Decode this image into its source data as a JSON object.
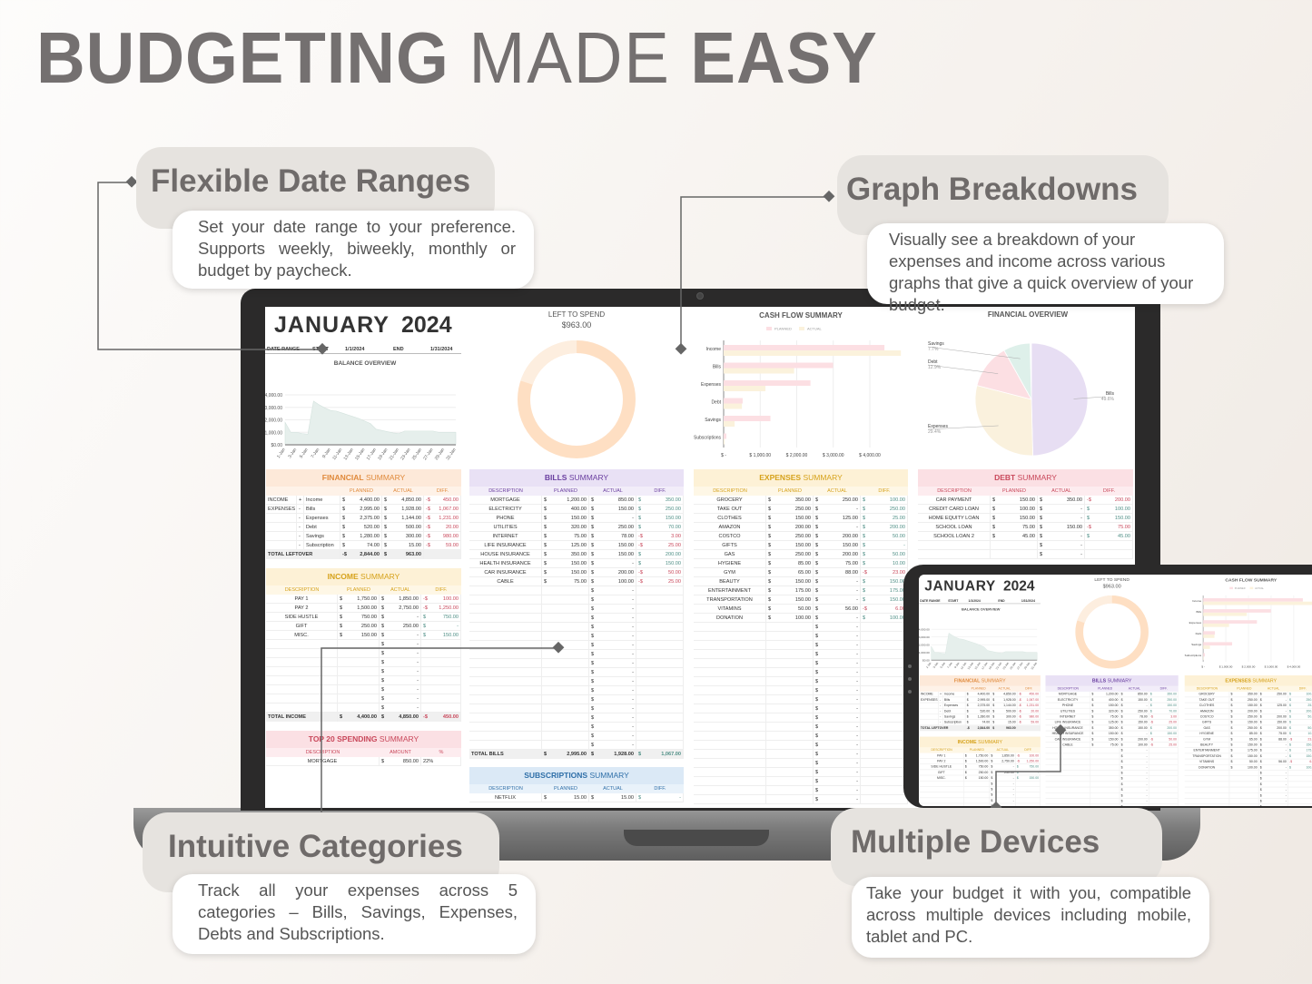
{
  "headline": {
    "bold1": "BUDGETING",
    "light": "MADE",
    "bold2": "EASY"
  },
  "callouts": [
    {
      "title": "Flexible Date Ranges",
      "text": "Set your date range to your preference. Supports weekly, biweekly, monthly or budget by paycheck."
    },
    {
      "title": "Graph Breakdowns",
      "text": "Visually see a breakdown of your expenses and income across various graphs that give a quick overview of your budget."
    },
    {
      "title": "Intuitive Categories",
      "text": "Track all your expenses across 5 categories – Bills, Savings, Expenses, Debts and Subscriptions."
    },
    {
      "title": "Multiple Devices",
      "text": "Take your budget it with you, compatible across multiple devices including mobile, tablet and PC."
    }
  ],
  "dashboard": {
    "month": "JANUARY",
    "year": "2024",
    "date_range": {
      "label": "DATE RANGE",
      "start_label": "START",
      "start": "1/1/2024",
      "end_label": "END",
      "end": "1/31/2024"
    },
    "left_to_spend": {
      "label": "LEFT TO SPEND",
      "value": "$963.00"
    },
    "currency": "$",
    "neg_prefix": "-",
    "blank_value": "-",
    "columns": {
      "description": "DESCRIPTION",
      "planned": "PLANNED",
      "actual": "ACTUAL",
      "diff": "DIFF.",
      "amount": "AMOUNT",
      "percent": "%"
    },
    "financial_summary": {
      "title_bold": "FINANCIAL",
      "title_light": "SUMMARY",
      "rows": [
        {
          "group": "INCOME",
          "sign": "+",
          "desc": "Income",
          "planned": "4,400.00",
          "actual": "4,850.00",
          "diff": "450.00",
          "neg": true
        },
        {
          "group": "EXPENSES",
          "sign": "-",
          "desc": "Bills",
          "planned": "2,995.00",
          "actual": "1,928.00",
          "diff": "1,067.00",
          "neg": true
        },
        {
          "group": "",
          "sign": "-",
          "desc": "Expenses",
          "planned": "2,375.00",
          "actual": "1,144.00",
          "diff": "1,231.00",
          "neg": true
        },
        {
          "group": "",
          "sign": "-",
          "desc": "Debt",
          "planned": "520.00",
          "actual": "500.00",
          "diff": "20.00",
          "neg": true
        },
        {
          "group": "",
          "sign": "-",
          "desc": "Savings",
          "planned": "1,280.00",
          "actual": "300.00",
          "diff": "980.00",
          "neg": true
        },
        {
          "group": "",
          "sign": "-",
          "desc": "Subscription",
          "planned": "74.00",
          "actual": "15.00",
          "diff": "59.00",
          "neg": true
        }
      ],
      "total": {
        "label": "TOTAL LEFTOVER",
        "planned": "2,844.00",
        "planned_neg": true,
        "actual": "963.00"
      }
    },
    "income_summary": {
      "title_bold": "INCOME",
      "title_light": "SUMMARY",
      "rows": [
        {
          "desc": "PAY 1",
          "planned": "1,750.00",
          "actual": "1,850.00",
          "diff": "100.00",
          "neg": true
        },
        {
          "desc": "PAY 2",
          "planned": "1,500.00",
          "actual": "2,750.00",
          "diff": "1,250.00",
          "neg": true
        },
        {
          "desc": "SIDE HUSTLE",
          "planned": "750.00",
          "actual": "-",
          "diff": "750.00",
          "neg": false
        },
        {
          "desc": "GIFT",
          "planned": "250.00",
          "actual": "250.00",
          "diff": "-",
          "neg": false
        },
        {
          "desc": "MISC.",
          "planned": "150.00",
          "actual": "-",
          "diff": "150.00",
          "neg": false
        }
      ],
      "total": {
        "label": "TOTAL INCOME",
        "planned": "4,400.00",
        "actual": "4,850.00",
        "diff": "450.00",
        "neg": true
      }
    },
    "bills_summary": {
      "title_bold": "BILLS",
      "title_light": "SUMMARY",
      "rows": [
        {
          "desc": "MORTGAGE",
          "planned": "1,200.00",
          "actual": "850.00",
          "diff": "350.00",
          "neg": false
        },
        {
          "desc": "ELECTRICITY",
          "planned": "400.00",
          "actual": "150.00",
          "diff": "250.00",
          "neg": false
        },
        {
          "desc": "PHONE",
          "planned": "150.00",
          "actual": "-",
          "diff": "150.00",
          "neg": false
        },
        {
          "desc": "UTILITIES",
          "planned": "320.00",
          "actual": "250.00",
          "diff": "70.00",
          "neg": false
        },
        {
          "desc": "INTERNET",
          "planned": "75.00",
          "actual": "78.00",
          "diff": "3.00",
          "neg": true
        },
        {
          "desc": "LIFE INSURANCE",
          "planned": "125.00",
          "actual": "150.00",
          "diff": "25.00",
          "neg": true
        },
        {
          "desc": "HOUSE INSURANCE",
          "planned": "350.00",
          "actual": "150.00",
          "diff": "200.00",
          "neg": false
        },
        {
          "desc": "HEALTH INSURANCE",
          "planned": "150.00",
          "actual": "-",
          "diff": "150.00",
          "neg": false
        },
        {
          "desc": "CAR INSURANCE",
          "planned": "150.00",
          "actual": "200.00",
          "diff": "50.00",
          "neg": true
        },
        {
          "desc": "CABLE",
          "planned": "75.00",
          "actual": "100.00",
          "diff": "25.00",
          "neg": true
        }
      ],
      "total": {
        "label": "TOTAL BILLS",
        "planned": "2,995.00",
        "actual": "1,928.00",
        "diff": "1,067.00",
        "neg": false
      }
    },
    "expenses_summary": {
      "title_bold": "EXPENSES",
      "title_light": "SUMMARY",
      "rows": [
        {
          "desc": "GROCERY",
          "planned": "350.00",
          "actual": "250.00",
          "diff": "100.00",
          "neg": false
        },
        {
          "desc": "TAKE OUT",
          "planned": "250.00",
          "actual": "-",
          "diff": "250.00",
          "neg": false
        },
        {
          "desc": "CLOTHES",
          "planned": "150.00",
          "actual": "125.00",
          "diff": "25.00",
          "neg": false
        },
        {
          "desc": "AMAZON",
          "planned": "200.00",
          "actual": "-",
          "diff": "200.00",
          "neg": false
        },
        {
          "desc": "COSTCO",
          "planned": "250.00",
          "actual": "200.00",
          "diff": "50.00",
          "neg": false
        },
        {
          "desc": "GIFTS",
          "planned": "150.00",
          "actual": "150.00",
          "diff": "-",
          "neg": false
        },
        {
          "desc": "GAS",
          "planned": "250.00",
          "actual": "200.00",
          "diff": "50.00",
          "neg": false
        },
        {
          "desc": "HYGIENE",
          "planned": "85.00",
          "actual": "75.00",
          "diff": "10.00",
          "neg": false
        },
        {
          "desc": "GYM",
          "planned": "65.00",
          "actual": "88.00",
          "diff": "23.00",
          "neg": true
        },
        {
          "desc": "BEAUTY",
          "planned": "150.00",
          "actual": "-",
          "diff": "150.00",
          "neg": false
        },
        {
          "desc": "ENTERTAINMENT",
          "planned": "175.00",
          "actual": "-",
          "diff": "175.00",
          "neg": false
        },
        {
          "desc": "TRANSPORTATION",
          "planned": "150.00",
          "actual": "-",
          "diff": "150.00",
          "neg": false
        },
        {
          "desc": "VITAMINS",
          "planned": "50.00",
          "actual": "56.00",
          "diff": "6.00",
          "neg": true
        },
        {
          "desc": "DONATION",
          "planned": "100.00",
          "actual": "-",
          "diff": "100.00",
          "neg": false
        }
      ]
    },
    "debt_summary": {
      "title_bold": "DEBT",
      "title_light": "SUMMARY",
      "rows": [
        {
          "desc": "CAR PAYMENT",
          "planned": "150.00",
          "actual": "350.00",
          "diff": "200.00",
          "neg": true
        },
        {
          "desc": "CREDIT CARD LOAN",
          "planned": "100.00",
          "actual": "-",
          "diff": "100.00",
          "neg": false
        },
        {
          "desc": "HOME EQUITY LOAN",
          "planned": "150.00",
          "actual": "-",
          "diff": "150.00",
          "neg": false
        },
        {
          "desc": "SCHOOL LOAN",
          "planned": "75.00",
          "actual": "150.00",
          "diff": "75.00",
          "neg": true
        },
        {
          "desc": "SCHOOL LOAN 2",
          "planned": "45.00",
          "actual": "-",
          "diff": "45.00",
          "neg": false
        }
      ]
    },
    "top20_summary": {
      "title_bold": "TOP 20 SPENDING",
      "title_light": "SUMMARY",
      "rows": [
        {
          "desc": "MORTGAGE",
          "amount": "850.00",
          "percent": "22%"
        }
      ]
    },
    "subscriptions_summary": {
      "title_bold": "SUBSCRIPTIONS",
      "title_light": "SUMMARY",
      "rows": [
        {
          "desc": "NETFLIX",
          "planned": "15.00",
          "actual": "15.00",
          "diff": "-",
          "neg": false
        }
      ]
    }
  },
  "colors": {
    "financial": "#fde9d9",
    "financial_text": "#e08a3c",
    "bills": "#e9e1f5",
    "bills_text": "#6a3fa0",
    "expenses": "#fdf1d6",
    "expenses_text": "#d6a21b",
    "debt": "#fbe0e4",
    "debt_text": "#c9485b",
    "subscriptions": "#dbe9f6",
    "subscriptions_text": "#2f6fa8",
    "negative": "#c9485b",
    "positive": "#4f8f86"
  },
  "chart_data": [
    {
      "type": "area",
      "title": "BALANCE OVERVIEW",
      "x_tick_labels": [
        "1-Jan",
        "3-Jan",
        "5-Jan",
        "7-Jan",
        "9-Jan",
        "11-Jan",
        "13-Jan",
        "15-Jan",
        "17-Jan",
        "19-Jan",
        "21-Jan",
        "23-Jan",
        "25-Jan",
        "27-Jan",
        "29-Jan",
        "31-Jan"
      ],
      "y_tick_labels": [
        "$0.00",
        "$1,000.00",
        "$2,000.00",
        "$3,000.00",
        "$4,000.00"
      ],
      "ylim": [
        0,
        4000
      ],
      "x": [
        1,
        2,
        3,
        4,
        5,
        6,
        7,
        8,
        9,
        10,
        11,
        12,
        13,
        14,
        15,
        16,
        17,
        18,
        19,
        20,
        21,
        22,
        23,
        24,
        25,
        26,
        27,
        28,
        29,
        30,
        31
      ],
      "values": [
        1800,
        1000,
        1000,
        900,
        850,
        3500,
        3200,
        2950,
        2750,
        2700,
        2550,
        2400,
        2250,
        2100,
        1900,
        1700,
        1250,
        1150,
        1050,
        950,
        900,
        1100,
        1100,
        1100,
        1100,
        1100,
        1100,
        1000,
        1000,
        1000,
        1000
      ],
      "color": "#e6efec",
      "grid": true
    },
    {
      "type": "donut",
      "title": "LEFT TO SPEND",
      "left_to_spend": 963,
      "total_income": 4850,
      "colors": [
        "#fedfc3",
        "#fdeedf"
      ]
    },
    {
      "type": "bar",
      "orientation": "horizontal",
      "title": "CASH FLOW SUMMARY",
      "categories": [
        "Income",
        "Bills",
        "Expenses",
        "Debt",
        "Savings",
        "Subscriptions"
      ],
      "series": [
        {
          "name": "PLANNED",
          "values": [
            4400,
            2995,
            2375,
            520,
            1280,
            74
          ],
          "color": "#fcdfe3"
        },
        {
          "name": "ACTUAL",
          "values": [
            4850,
            1928,
            1144,
            500,
            300,
            15
          ],
          "color": "#fbf2dc"
        }
      ],
      "x_tick_labels": [
        "$ -",
        "$ 1,000.00",
        "$ 2,000.00",
        "$ 3,000.00",
        "$ 4,000.00"
      ],
      "xlim": [
        0,
        5000
      ],
      "legend": "top",
      "grid": true
    },
    {
      "type": "pie",
      "title": "FINANCIAL OVERVIEW",
      "labels": [
        "Bills",
        "Expenses",
        "Debt",
        "Savings"
      ],
      "values": [
        49.6,
        29.4,
        12.9,
        7.7
      ],
      "value_labels": [
        "49.6%",
        "29.4%",
        "12.9%",
        "7.7%"
      ],
      "colors": [
        "#e7def3",
        "#faf1dd",
        "#fcdfe3",
        "#def0ea"
      ]
    }
  ]
}
